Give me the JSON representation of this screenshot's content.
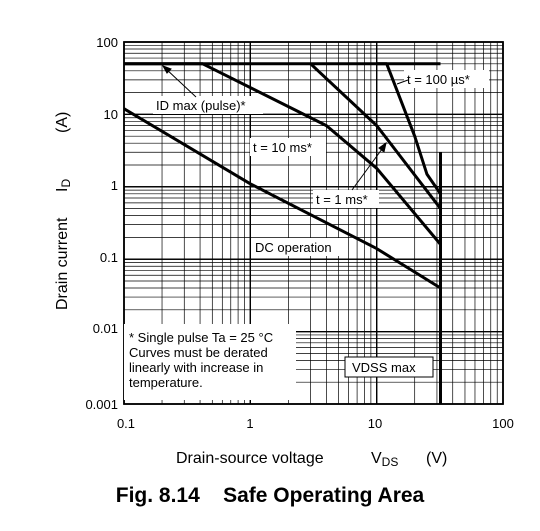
{
  "caption": "Fig. 8.14    Safe Operating Area",
  "chart_data": {
    "type": "line",
    "title": "",
    "xscale": "log",
    "yscale": "log",
    "xlim": [
      0.1,
      100
    ],
    "ylim": [
      0.001,
      100
    ],
    "grid": true,
    "xlabel": {
      "text": "Drain-source voltage",
      "symbol": "V",
      "subscript": "DS",
      "unit": "(V)"
    },
    "ylabel": {
      "text": "Drain current",
      "symbol": "I",
      "subscript": "D",
      "unit": "(A)"
    },
    "x_ticks": [
      "0.1",
      "1",
      "10",
      "100"
    ],
    "y_ticks": [
      "0.001",
      "0.01",
      "0.1",
      "1",
      "10",
      "100"
    ],
    "series": [
      {
        "name": "DC operation",
        "points": [
          [
            0.1,
            12
          ],
          [
            1,
            1.1
          ],
          [
            10,
            0.14
          ],
          [
            32,
            0.04
          ]
        ]
      },
      {
        "name": "t = 1 ms*",
        "points": [
          [
            0.1,
            50
          ],
          [
            0.42,
            50
          ],
          [
            4,
            7
          ],
          [
            10,
            1.8
          ],
          [
            32,
            0.16
          ]
        ]
      },
      {
        "name": "t = 10 ms*",
        "points": [
          [
            3,
            50
          ],
          [
            10,
            7
          ],
          [
            32,
            0.5
          ]
        ]
      },
      {
        "name": "t = 100 µs*",
        "points": [
          [
            10,
            50
          ],
          [
            12,
            50
          ],
          [
            20,
            5
          ],
          [
            25,
            1.5
          ],
          [
            32,
            0.8
          ],
          [
            32,
            3
          ]
        ]
      }
    ],
    "limits": [
      {
        "name": "ID max (pulse)*",
        "points": [
          [
            0.1,
            50
          ],
          [
            32,
            50
          ]
        ]
      },
      {
        "name": "VDSS max",
        "points": [
          [
            32,
            0.001
          ],
          [
            32,
            3
          ]
        ]
      }
    ],
    "annotations": {
      "id_max": "ID max (pulse)*",
      "t100": "t = 100 µs*",
      "t10": "t = 10 ms*",
      "t1": "t = 1 ms*",
      "dc": "DC operation",
      "vdss": "VDSS max",
      "note": [
        "* Single pulse Ta = 25 °C",
        "Curves must be derated",
        "linearly with increase in",
        "temperature."
      ]
    }
  }
}
